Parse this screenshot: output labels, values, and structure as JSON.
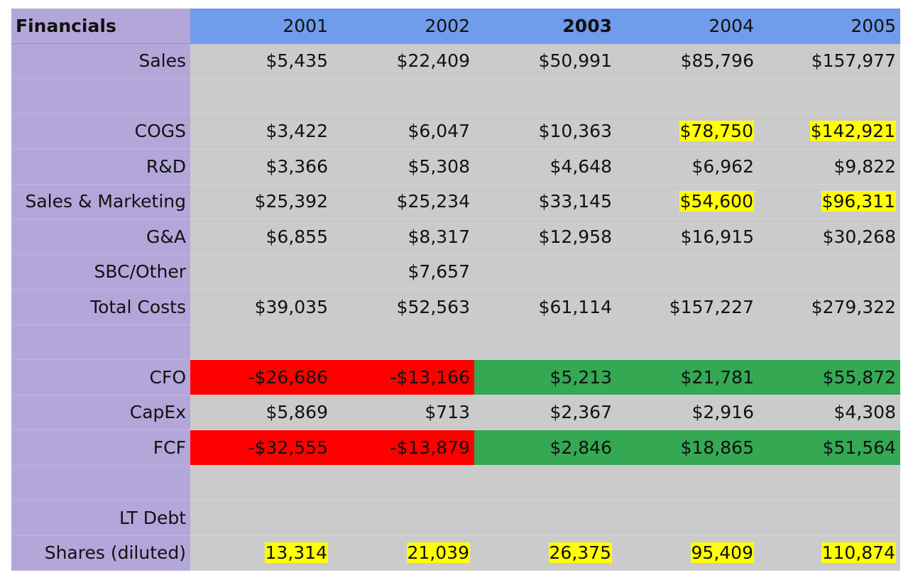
{
  "header": {
    "title": "Financials",
    "years": [
      "2001",
      "2002",
      "2003",
      "2004",
      "2005"
    ],
    "bold_year_index": 2
  },
  "rows": [
    {
      "label": "Sales",
      "values": [
        "$5,435",
        "$22,409",
        "$50,991",
        "$85,796",
        "$157,977"
      ]
    },
    {
      "label": "",
      "values": [
        "",
        "",
        "",
        "",
        ""
      ]
    },
    {
      "label": "COGS",
      "values": [
        "$3,422",
        "$6,047",
        "$10,363",
        "$78,750",
        "$142,921"
      ],
      "highlight": [
        false,
        false,
        false,
        true,
        true
      ]
    },
    {
      "label": "R&D",
      "values": [
        "$3,366",
        "$5,308",
        "$4,648",
        "$6,962",
        "$9,822"
      ]
    },
    {
      "label": "Sales & Marketing",
      "values": [
        "$25,392",
        "$25,234",
        "$33,145",
        "$54,600",
        "$96,311"
      ],
      "highlight": [
        false,
        false,
        false,
        true,
        true
      ]
    },
    {
      "label": "G&A",
      "values": [
        "$6,855",
        "$8,317",
        "$12,958",
        "$16,915",
        "$30,268"
      ]
    },
    {
      "label": "SBC/Other",
      "values": [
        "",
        "$7,657",
        "",
        "",
        ""
      ]
    },
    {
      "label": "Total Costs",
      "values": [
        "$39,035",
        "$52,563",
        "$61,114",
        "$157,227",
        "$279,322"
      ]
    },
    {
      "label": "",
      "values": [
        "",
        "",
        "",
        "",
        ""
      ]
    },
    {
      "label": "CFO",
      "values": [
        "-$26,686",
        "-$13,166",
        "$5,213",
        "$21,781",
        "$55,872"
      ],
      "fill": [
        "red",
        "red",
        "green",
        "green",
        "green"
      ]
    },
    {
      "label": "CapEx",
      "values": [
        "$5,869",
        "$713",
        "$2,367",
        "$2,916",
        "$4,308"
      ]
    },
    {
      "label": "FCF",
      "values": [
        "-$32,555",
        "-$13,879",
        "$2,846",
        "$18,865",
        "$51,564"
      ],
      "fill": [
        "red",
        "red",
        "green",
        "green",
        "green"
      ]
    },
    {
      "label": "",
      "values": [
        "",
        "",
        "",
        "",
        ""
      ]
    },
    {
      "label": "LT Debt",
      "values": [
        "",
        "",
        "",
        "",
        ""
      ]
    },
    {
      "label": "Shares (diluted)",
      "values": [
        "13,314",
        "21,039",
        "26,375",
        "95,409",
        "110,874"
      ],
      "highlight": [
        true,
        true,
        true,
        true,
        true
      ]
    }
  ],
  "colors": {
    "header_bg": "#6f9ceb",
    "label_bg": "#b3a7da",
    "cell_bg": "#cbcbcb",
    "negative_fill": "#ff0000",
    "positive_fill": "#34a853",
    "highlight": "#ffff00"
  }
}
